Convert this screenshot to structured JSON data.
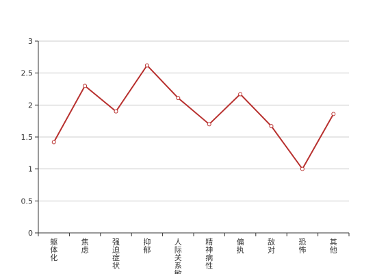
{
  "chart_data": {
    "type": "line",
    "categories": [
      "躯体化",
      "焦虑",
      "强迫症状",
      "抑郁",
      "人际关系敏感",
      "精神病性",
      "偏执",
      "敌对",
      "恐怖",
      "其他"
    ],
    "series": [
      {
        "values": [
          1.42,
          2.3,
          1.9,
          2.62,
          2.11,
          1.7,
          2.17,
          1.67,
          1.0,
          1.86
        ]
      }
    ],
    "ylim": [
      0,
      3
    ],
    "yticks": [
      "0",
      "0.5",
      "1",
      "1.5",
      "2",
      "2.5",
      "3"
    ],
    "grid": true,
    "colors": {
      "series": "#b8312f",
      "grid": "#cccccc",
      "axis": "#333333"
    }
  }
}
